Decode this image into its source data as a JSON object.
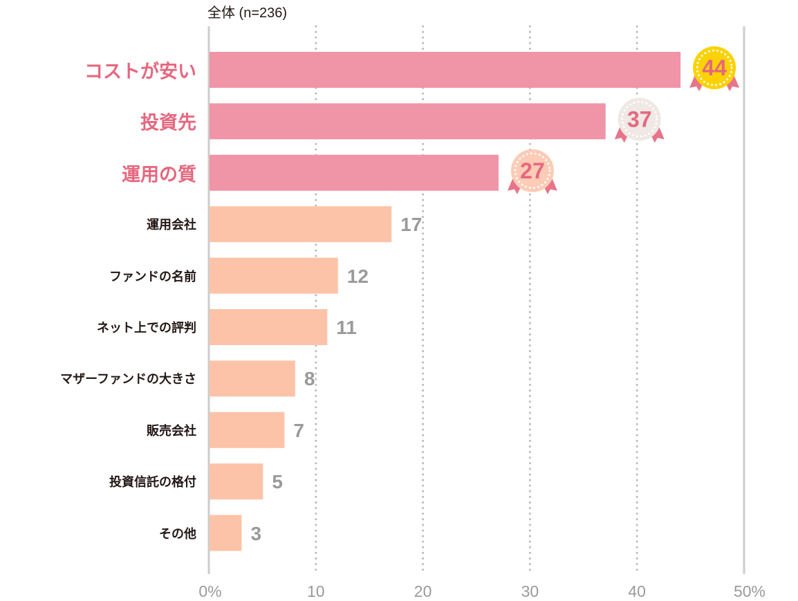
{
  "chart_data": {
    "type": "bar",
    "orientation": "horizontal",
    "title": "",
    "subtitle": "全体 (n=236)",
    "xlabel": "",
    "ylabel": "",
    "xlim": [
      0,
      50
    ],
    "grid": true,
    "categories": [
      "コストが安い",
      "投資先",
      "運用の質",
      "運用会社",
      "ファンドの名前",
      "ネット上での評判",
      "マザーファンドの大きさ",
      "販売会社",
      "投資信託の格付",
      "その他"
    ],
    "values": [
      44,
      37,
      27,
      17,
      12,
      11,
      8,
      7,
      5,
      3
    ],
    "value_labels": [
      "44",
      "37",
      "27",
      "17",
      "12",
      "11",
      "8",
      "7",
      "5",
      "3"
    ],
    "ticks": [
      0,
      10,
      20,
      30,
      40,
      50
    ],
    "tick_labels": [
      "0%",
      "10",
      "20",
      "30",
      "40",
      "50%"
    ],
    "highlight_top_n": 3,
    "colors": {
      "top_bar": "#f094a7",
      "rest_bar": "#fdc3a8",
      "top_label": "#e5677f",
      "rest_label": "#231815",
      "value_text": "#9a9a9a",
      "badge_number": "#e5677f",
      "badge_ribbon": "#e8748a",
      "badge_1": "#fcd203",
      "badge_2": "#efe8e4",
      "badge_3": "#fdcbb6",
      "axis": "#cccccc",
      "grid": "#bbbbbb"
    }
  }
}
